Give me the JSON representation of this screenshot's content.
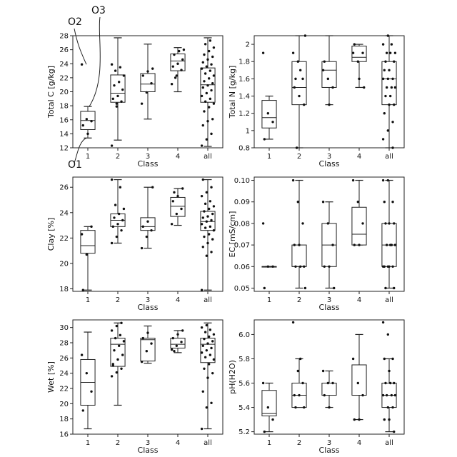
{
  "chart_data": [
    {
      "type": "box",
      "xlabel": "Class",
      "ylabel": "Total C [g/kg]",
      "categories": [
        "1",
        "2",
        "3",
        "4",
        "all"
      ],
      "ylim": [
        12,
        28
      ],
      "yticks": [
        12,
        14,
        16,
        18,
        20,
        22,
        24,
        26,
        28
      ],
      "boxes": [
        {
          "min": 13.4,
          "q1": 14.6,
          "median": 15.9,
          "q3": 17.2,
          "max": 17.9
        },
        {
          "min": 13.1,
          "q1": 18.5,
          "median": 19.8,
          "q3": 22.4,
          "max": 27.7
        },
        {
          "min": 16.1,
          "q1": 20.0,
          "median": 21.1,
          "q3": 22.6,
          "max": 26.8
        },
        {
          "min": 20.0,
          "q1": 23.0,
          "median": 24.4,
          "q3": 25.4,
          "max": 26.3
        },
        {
          "min": 12.2,
          "q1": 18.5,
          "median": 21.0,
          "q3": 23.4,
          "max": 27.7
        }
      ],
      "points": [
        [
          23.9,
          16.1,
          15.8,
          15.2,
          14.0
        ],
        [
          12.3,
          17.9,
          18.6,
          19.0,
          19.4,
          20.3,
          20.9,
          21.4,
          22.3,
          23.0,
          23.5,
          23.9,
          18.3
        ],
        [
          18.3,
          19.9,
          21.2,
          22.3,
          22.9,
          23.3
        ],
        [
          21.1,
          22.3,
          23.1,
          23.6,
          24.0,
          24.6,
          25.3,
          25.8,
          26.0,
          22.0
        ],
        [
          12.3,
          13.2,
          14.0,
          15.2,
          15.8,
          16.1,
          17.2,
          17.8,
          18.3,
          18.6,
          19.0,
          19.4,
          19.8,
          20.2,
          20.6,
          20.9,
          21.2,
          21.5,
          21.9,
          22.3,
          22.6,
          23.0,
          23.3,
          23.6,
          23.9,
          24.2,
          24.6,
          25.0,
          25.3,
          25.8,
          26.3,
          26.8,
          27.3
        ]
      ],
      "annotations": [
        {
          "text": "O1",
          "value": 13.4,
          "category": "1"
        },
        {
          "text": "O2",
          "value": 23.9,
          "category": "1"
        },
        {
          "text": "O3",
          "value": 17.9,
          "category": "1"
        }
      ]
    },
    {
      "type": "box",
      "xlabel": "Class",
      "ylabel": "Total N [g/kg]",
      "categories": [
        "1",
        "2",
        "3",
        "4",
        "all"
      ],
      "ylim": [
        0.8,
        2.1
      ],
      "yticks": [
        0.8,
        1.0,
        1.2,
        1.4,
        1.6,
        1.8,
        2.0
      ],
      "boxes": [
        {
          "min": 0.9,
          "q1": 1.03,
          "median": 1.15,
          "q3": 1.35,
          "max": 1.4
        },
        {
          "min": 0.8,
          "q1": 1.3,
          "median": 1.5,
          "q3": 1.8,
          "max": 2.1
        },
        {
          "min": 1.3,
          "q1": 1.5,
          "median": 1.7,
          "q3": 1.8,
          "max": 2.1
        },
        {
          "min": 1.5,
          "q1": 1.8,
          "median": 1.85,
          "q3": 1.98,
          "max": 2.0
        },
        {
          "min": 0.8,
          "q1": 1.3,
          "median": 1.6,
          "q3": 1.8,
          "max": 2.1
        }
      ],
      "points": [
        [
          1.9,
          1.2,
          1.1,
          0.9
        ],
        [
          1.9,
          1.8,
          1.6,
          1.5,
          1.4,
          1.3,
          1.6,
          1.7,
          2.1,
          0.8
        ],
        [
          1.7,
          1.6,
          1.5,
          1.8,
          1.3
        ],
        [
          1.9,
          1.8,
          1.9,
          2.0,
          1.6,
          1.5
        ],
        [
          0.9,
          1.0,
          1.1,
          1.2,
          1.3,
          1.3,
          1.4,
          1.4,
          1.5,
          1.5,
          1.5,
          1.6,
          1.6,
          1.6,
          1.7,
          1.7,
          1.8,
          1.8,
          1.9,
          1.9,
          1.9,
          2.0,
          2.0,
          2.1,
          0.8
        ]
      ]
    },
    {
      "type": "box",
      "xlabel": "Class",
      "ylabel": "Clay [%]",
      "categories": [
        "1",
        "2",
        "3",
        "4",
        "all"
      ],
      "ylim": [
        17.8,
        26.8
      ],
      "yticks": [
        18,
        20,
        22,
        24,
        26
      ],
      "boxes": [
        {
          "min": 17.9,
          "q1": 20.8,
          "median": 21.4,
          "q3": 22.6,
          "max": 22.9
        },
        {
          "min": 21.6,
          "q1": 22.9,
          "median": 23.4,
          "q3": 23.9,
          "max": 26.6
        },
        {
          "min": 21.2,
          "q1": 22.6,
          "median": 22.9,
          "q3": 23.6,
          "max": 26.0
        },
        {
          "min": 23.0,
          "q1": 23.7,
          "median": 24.5,
          "q3": 25.2,
          "max": 25.9
        },
        {
          "min": 17.9,
          "q1": 22.6,
          "median": 23.3,
          "q3": 24.1,
          "max": 26.6
        }
      ],
      "points": [
        [
          22.3,
          20.7,
          22.9,
          17.9
        ],
        [
          21.6,
          22.1,
          22.6,
          22.9,
          23.1,
          23.4,
          23.6,
          23.9,
          24.3,
          24.6,
          26.0,
          26.6
        ],
        [
          21.2,
          22.1,
          22.6,
          22.9,
          23.3,
          26.0
        ],
        [
          23.1,
          23.9,
          24.3,
          24.9,
          25.3,
          25.9,
          25.6
        ],
        [
          17.9,
          20.6,
          20.9,
          21.3,
          21.6,
          21.9,
          22.1,
          22.3,
          22.6,
          22.8,
          22.9,
          23.1,
          23.3,
          23.4,
          23.6,
          23.7,
          23.9,
          24.1,
          24.3,
          24.5,
          24.7,
          24.9,
          25.3,
          25.6,
          26.0,
          26.6
        ]
      ]
    },
    {
      "type": "box",
      "xlabel": "Class",
      "ylabel": "EC [mS/cm]",
      "categories": [
        "1",
        "2",
        "3",
        "4",
        "all"
      ],
      "ylim": [
        0.0485,
        0.1015
      ],
      "yticks": [
        0.05,
        0.06,
        0.07,
        0.08,
        0.09,
        0.1
      ],
      "tick_labels": [
        "0.05",
        "0.06",
        "0.07",
        "0.08",
        "0.09",
        "0.10"
      ],
      "boxes": [
        {
          "min": 0.06,
          "q1": 0.06,
          "median": 0.06,
          "q3": 0.06,
          "max": 0.06
        },
        {
          "min": 0.05,
          "q1": 0.06,
          "median": 0.06,
          "q3": 0.07,
          "max": 0.1
        },
        {
          "min": 0.05,
          "q1": 0.06,
          "median": 0.07,
          "q3": 0.08,
          "max": 0.09
        },
        {
          "min": 0.07,
          "q1": 0.07,
          "median": 0.075,
          "q3": 0.0875,
          "max": 0.1
        },
        {
          "min": 0.05,
          "q1": 0.06,
          "median": 0.07,
          "q3": 0.08,
          "max": 0.1
        }
      ],
      "points": [
        [
          0.08,
          0.06,
          0.06,
          0.05
        ],
        [
          0.1,
          0.09,
          0.08,
          0.07,
          0.07,
          0.06,
          0.06,
          0.06,
          0.05
        ],
        [
          0.09,
          0.08,
          0.07,
          0.06,
          0.06,
          0.05
        ],
        [
          0.1,
          0.09,
          0.08,
          0.07,
          0.07
        ],
        [
          0.1,
          0.1,
          0.09,
          0.09,
          0.08,
          0.08,
          0.08,
          0.07,
          0.07,
          0.07,
          0.07,
          0.06,
          0.06,
          0.06,
          0.06,
          0.06,
          0.05,
          0.05
        ]
      ]
    },
    {
      "type": "box",
      "xlabel": "Class",
      "ylabel": "Wet [%]",
      "categories": [
        "1",
        "2",
        "3",
        "4",
        "all"
      ],
      "ylim": [
        16,
        31
      ],
      "yticks": [
        16,
        18,
        20,
        22,
        24,
        26,
        28,
        30
      ],
      "boxes": [
        {
          "min": 16.7,
          "q1": 19.8,
          "median": 22.8,
          "q3": 25.8,
          "max": 29.4
        },
        {
          "min": 19.8,
          "q1": 24.9,
          "median": 27.8,
          "q3": 28.6,
          "max": 30.6
        },
        {
          "min": 25.3,
          "q1": 25.6,
          "median": 28.4,
          "q3": 28.6,
          "max": 30.2
        },
        {
          "min": 26.7,
          "q1": 27.3,
          "median": 27.8,
          "q3": 28.6,
          "max": 29.6
        },
        {
          "min": 16.7,
          "q1": 25.4,
          "median": 27.8,
          "q3": 28.6,
          "max": 30.6
        }
      ],
      "points": [
        [
          26.4,
          24.0,
          21.6,
          19.1
        ],
        [
          23.6,
          24.1,
          24.6,
          25.2,
          25.8,
          26.4,
          27.0,
          27.6,
          28.2,
          28.6,
          29.0,
          29.6,
          30.2,
          30.6,
          25.0
        ],
        [
          25.5,
          26.9,
          27.9,
          28.6,
          29.3
        ],
        [
          27.1,
          27.6,
          28.1,
          28.6,
          29.1,
          29.6,
          26.9
        ],
        [
          16.7,
          19.5,
          20.1,
          21.6,
          23.4,
          24.0,
          24.6,
          25.2,
          25.8,
          26.1,
          26.4,
          26.7,
          27.0,
          27.3,
          27.6,
          27.9,
          28.2,
          28.5,
          28.8,
          29.1,
          29.4,
          29.7,
          30.0,
          30.3
        ]
      ]
    },
    {
      "type": "box",
      "xlabel": "Class",
      "ylabel": "pH(H2O)",
      "categories": [
        "1",
        "2",
        "3",
        "4",
        "all"
      ],
      "ylim": [
        5.18,
        6.12
      ],
      "yticks": [
        5.2,
        5.4,
        5.6,
        5.8,
        6.0
      ],
      "tick_labels": [
        "5.2",
        "5.4",
        "5.6",
        "5.8",
        "6.0"
      ],
      "boxes": [
        {
          "min": 5.2,
          "q1": 5.33,
          "median": 5.35,
          "q3": 5.54,
          "max": 5.6
        },
        {
          "min": 5.4,
          "q1": 5.4,
          "median": 5.5,
          "q3": 5.6,
          "max": 5.8
        },
        {
          "min": 5.4,
          "q1": 5.5,
          "median": 5.6,
          "q3": 5.6,
          "max": 5.7
        },
        {
          "min": 5.3,
          "q1": 5.5,
          "median": 5.5,
          "q3": 5.75,
          "max": 6.0
        },
        {
          "min": 5.2,
          "q1": 5.4,
          "median": 5.5,
          "q3": 5.6,
          "max": 5.8
        }
      ],
      "points": [
        [
          5.6,
          5.4,
          5.3,
          5.2
        ],
        [
          6.1,
          5.7,
          5.6,
          5.5,
          5.5,
          5.4,
          5.4,
          5.8
        ],
        [
          5.7,
          5.6,
          5.6,
          5.5,
          5.4
        ],
        [
          5.8,
          5.6,
          5.5,
          5.3,
          5.3
        ],
        [
          6.1,
          6.0,
          5.8,
          5.8,
          5.7,
          5.6,
          5.6,
          5.6,
          5.5,
          5.5,
          5.5,
          5.5,
          5.4,
          5.4,
          5.3,
          5.3,
          5.2
        ]
      ]
    }
  ]
}
